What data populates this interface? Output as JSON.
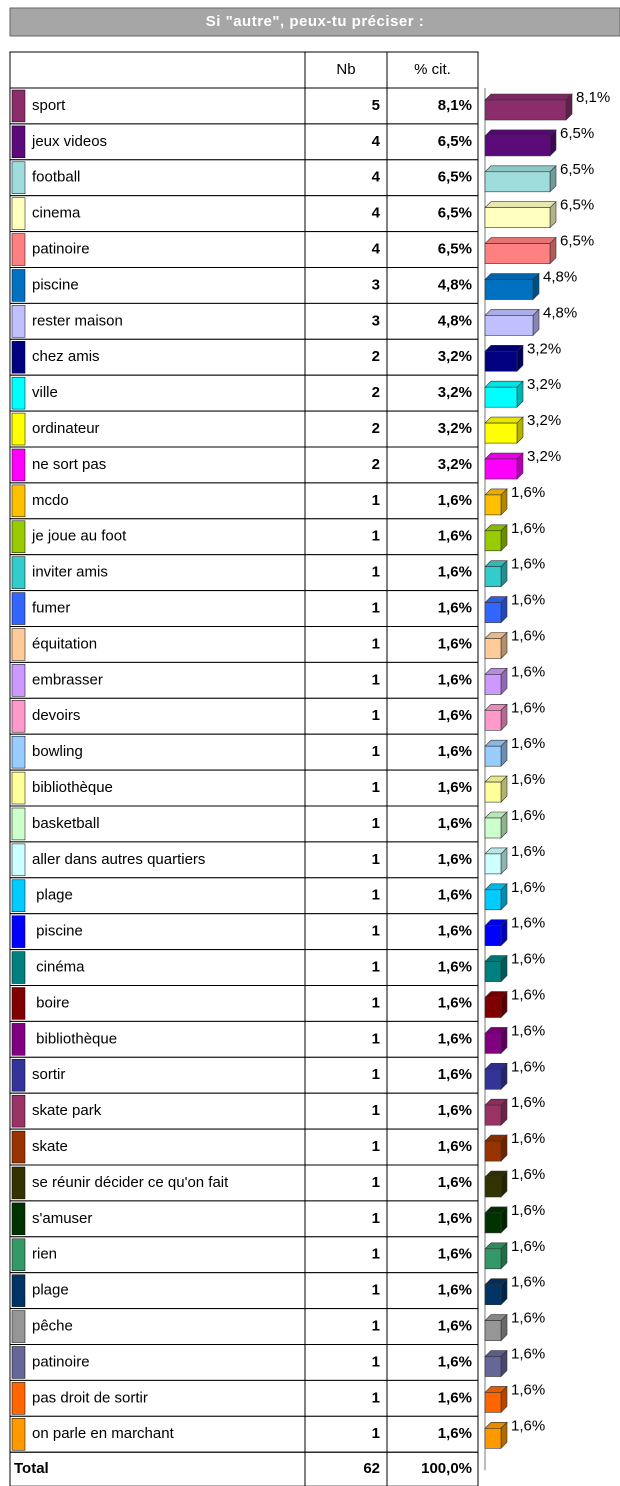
{
  "chart_data": {
    "type": "bar",
    "title": "Si \"autre\", peux-tu préciser :",
    "columns": [
      "Nb",
      "% cit."
    ],
    "categories": [
      "sport",
      "jeux videos",
      "football",
      "cinema",
      "patinoire",
      "piscine",
      "rester maison",
      "chez amis",
      "ville",
      "ordinateur",
      "ne sort pas",
      "mcdo",
      "je joue au foot",
      "inviter amis",
      "fumer",
      "équitation",
      "embrasser",
      "devoirs",
      "bowling",
      "bibliothèque",
      "basketball",
      "aller dans autres quartiers",
      " plage",
      " piscine",
      " cinéma",
      " boire",
      " bibliothèque",
      "sortir",
      "skate park",
      "skate",
      "se réunir décider ce qu'on fait",
      "s'amuser",
      "rien",
      "plage",
      "pêche",
      "patinoire",
      "pas droit de sortir",
      "on parle en marchant"
    ],
    "counts": [
      5,
      4,
      4,
      4,
      4,
      3,
      3,
      2,
      2,
      2,
      2,
      1,
      1,
      1,
      1,
      1,
      1,
      1,
      1,
      1,
      1,
      1,
      1,
      1,
      1,
      1,
      1,
      1,
      1,
      1,
      1,
      1,
      1,
      1,
      1,
      1,
      1,
      1
    ],
    "values": [
      8.1,
      6.5,
      6.5,
      6.5,
      6.5,
      4.8,
      4.8,
      3.2,
      3.2,
      3.2,
      3.2,
      1.6,
      1.6,
      1.6,
      1.6,
      1.6,
      1.6,
      1.6,
      1.6,
      1.6,
      1.6,
      1.6,
      1.6,
      1.6,
      1.6,
      1.6,
      1.6,
      1.6,
      1.6,
      1.6,
      1.6,
      1.6,
      1.6,
      1.6,
      1.6,
      1.6,
      1.6,
      1.6
    ],
    "value_labels": [
      "8,1%",
      "6,5%",
      "6,5%",
      "6,5%",
      "6,5%",
      "4,8%",
      "4,8%",
      "3,2%",
      "3,2%",
      "3,2%",
      "3,2%",
      "1,6%",
      "1,6%",
      "1,6%",
      "1,6%",
      "1,6%",
      "1,6%",
      "1,6%",
      "1,6%",
      "1,6%",
      "1,6%",
      "1,6%",
      "1,6%",
      "1,6%",
      "1,6%",
      "1,6%",
      "1,6%",
      "1,6%",
      "1,6%",
      "1,6%",
      "1,6%",
      "1,6%",
      "1,6%",
      "1,6%",
      "1,6%",
      "1,6%",
      "1,6%",
      "1,6%"
    ],
    "colors": [
      "#8b2c6b",
      "#5c0a7a",
      "#9fdddd",
      "#ffffc0",
      "#ff8080",
      "#0070c0",
      "#c0c0ff",
      "#000080",
      "#00ffff",
      "#ffff00",
      "#ff00ff",
      "#ffc000",
      "#99cc00",
      "#33cccc",
      "#3366ff",
      "#ffcc99",
      "#cc99ff",
      "#ff99cc",
      "#99ccff",
      "#ffff99",
      "#ccffcc",
      "#ccffff",
      "#00ccff",
      "#0000ff",
      "#008080",
      "#800000",
      "#800080",
      "#333399",
      "#993366",
      "#993300",
      "#333300",
      "#003300",
      "#339966",
      "#003366",
      "#969696",
      "#666699",
      "#ff6600",
      "#ff9900"
    ],
    "total": {
      "label": "Total",
      "count": 62,
      "value_label": "100,0%"
    }
  }
}
